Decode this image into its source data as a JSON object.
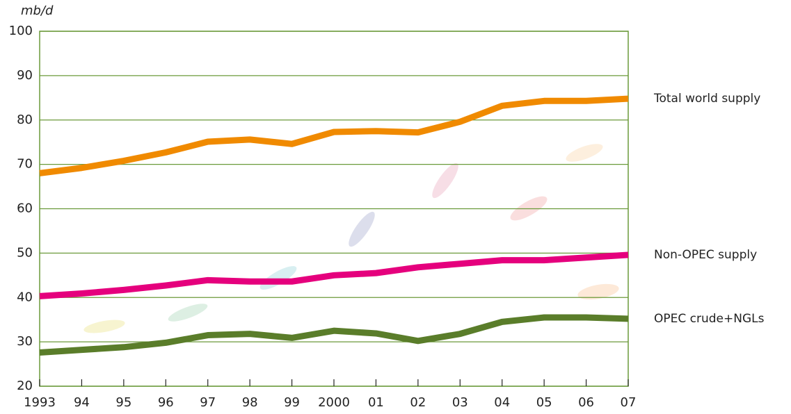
{
  "chart_data": {
    "type": "line",
    "ylabel": "mb/d",
    "categories": [
      "1993",
      "94",
      "95",
      "96",
      "97",
      "98",
      "99",
      "2000",
      "01",
      "02",
      "03",
      "04",
      "05",
      "06",
      "07"
    ],
    "series": [
      {
        "name": "Total world supply",
        "color": "#f08a00",
        "values": [
          68,
          69.2,
          70.8,
          72.7,
          75.1,
          75.6,
          74.6,
          77.3,
          77.5,
          77.2,
          79.6,
          83.2,
          84.3,
          84.3,
          84.8
        ]
      },
      {
        "name": "Non-OPEC supply",
        "color": "#e5007d",
        "values": [
          40.3,
          40.9,
          41.7,
          42.7,
          43.9,
          43.6,
          43.6,
          45.0,
          45.5,
          46.8,
          47.6,
          48.4,
          48.4,
          49.0,
          49.6
        ]
      },
      {
        "name": "OPEC crude+NGLs",
        "color": "#5a7d2a",
        "values": [
          27.6,
          28.2,
          28.8,
          29.8,
          31.5,
          31.8,
          30.9,
          32.5,
          31.9,
          30.2,
          31.8,
          34.5,
          35.5,
          35.5,
          35.2
        ]
      }
    ],
    "ylim": [
      20,
      100
    ],
    "yticks": [
      20,
      30,
      40,
      50,
      60,
      70,
      80,
      90,
      100
    ],
    "grid": true
  }
}
